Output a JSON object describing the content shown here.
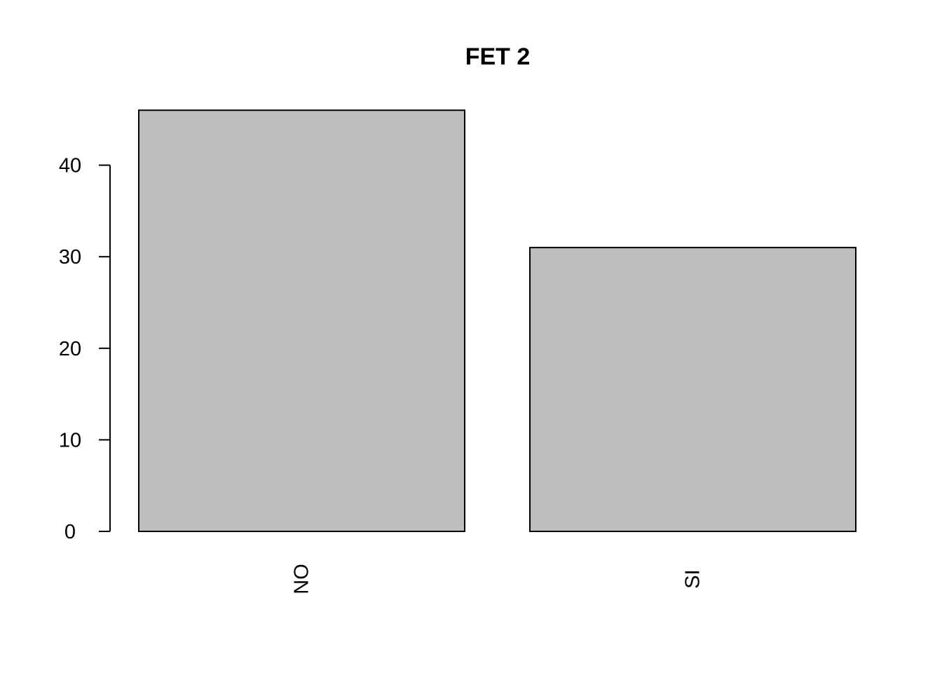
{
  "chart_data": {
    "type": "bar",
    "title": "FET 2",
    "xlabel": "",
    "ylabel": "",
    "categories": [
      "NO",
      "SI"
    ],
    "values": [
      46,
      31
    ],
    "ylim": [
      0,
      46
    ],
    "yticks": [
      0,
      10,
      20,
      30,
      40
    ],
    "grid": false,
    "legend": "none",
    "x_tick_label_orientation": "vertical",
    "colors": {
      "bar_fill": "#bebebe",
      "bar_stroke": "#000000",
      "axis": "#000000",
      "background": "#ffffff"
    }
  }
}
